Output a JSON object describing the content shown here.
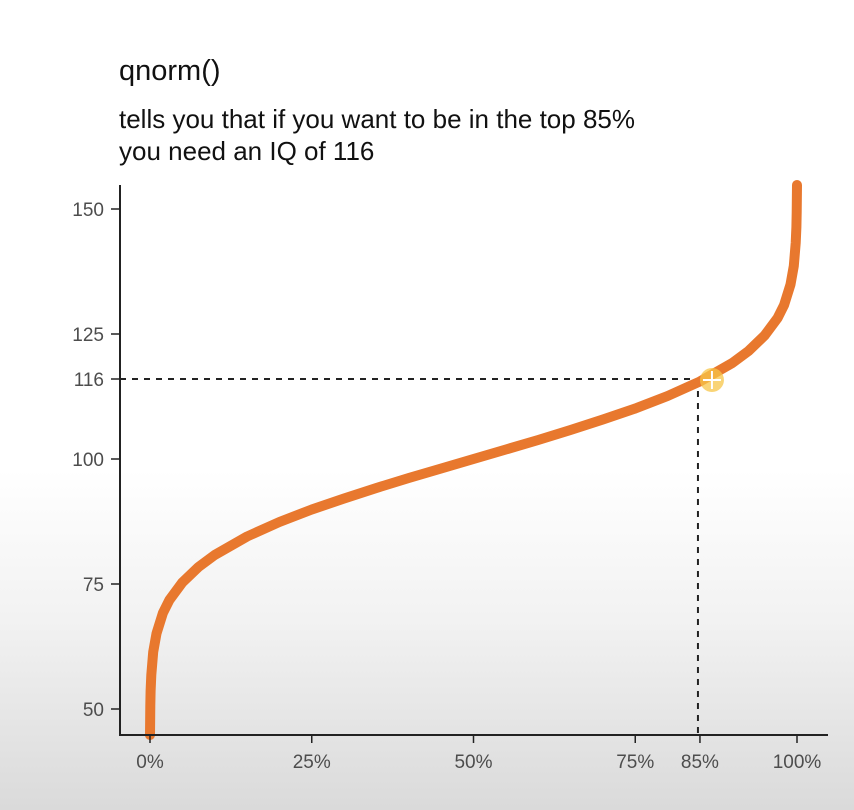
{
  "header": {
    "title": "qnorm()",
    "subtitle_line1": "tells you that if you want to be in the top 85%",
    "subtitle_line2": "you need an IQ of 116"
  },
  "chart_data": {
    "type": "line",
    "title": "",
    "xlabel": "",
    "ylabel": "",
    "distribution": {
      "function": "qnorm",
      "mean": 100,
      "sd": 15
    },
    "x_ticks": [
      {
        "value": 0,
        "label": "0%"
      },
      {
        "value": 0.25,
        "label": "25%"
      },
      {
        "value": 0.5,
        "label": "50%"
      },
      {
        "value": 0.75,
        "label": "75%"
      },
      {
        "value": 0.85,
        "label": "85%"
      },
      {
        "value": 1,
        "label": "100%"
      }
    ],
    "y_ticks": [
      {
        "value": 50,
        "label": "50"
      },
      {
        "value": 75,
        "label": "75"
      },
      {
        "value": 100,
        "label": "100"
      },
      {
        "value": 116,
        "label": "116"
      },
      {
        "value": 125,
        "label": "125"
      },
      {
        "value": 150,
        "label": "150"
      }
    ],
    "xlim": [
      0,
      1
    ],
    "ylim": [
      45,
      155
    ],
    "series": [
      {
        "x": [
          0.0005,
          0.001,
          0.002,
          0.005,
          0.01,
          0.02,
          0.03,
          0.05,
          0.075,
          0.1,
          0.15,
          0.2,
          0.25,
          0.3,
          0.35,
          0.4,
          0.45,
          0.5,
          0.55,
          0.6,
          0.65,
          0.7,
          0.75,
          0.8,
          0.85,
          0.9,
          0.925,
          0.95,
          0.97,
          0.98,
          0.99,
          0.995,
          0.998,
          0.999,
          0.9995
        ],
        "y": [
          50.6,
          53.6,
          56.8,
          61.4,
          65.1,
          69.2,
          71.8,
          75.3,
          78.4,
          80.8,
          84.5,
          87.4,
          89.9,
          92.1,
          94.2,
          96.2,
          98.1,
          100.0,
          101.9,
          103.8,
          105.8,
          107.9,
          110.1,
          112.6,
          115.5,
          119.2,
          121.6,
          124.7,
          128.2,
          130.8,
          134.9,
          138.6,
          143.2,
          146.4,
          149.4
        ]
      }
    ],
    "reference_point": {
      "x": 0.85,
      "y": 116
    },
    "colors": {
      "curve": "#e8782e",
      "axis": "#222222",
      "reference_line": "#222222",
      "highlight": "#f7c548"
    },
    "grid": false
  }
}
